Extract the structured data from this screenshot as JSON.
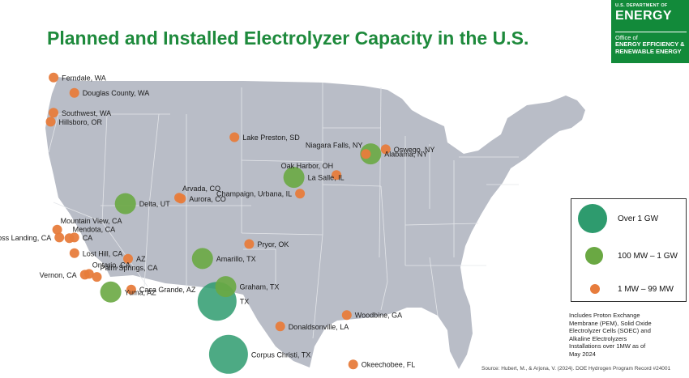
{
  "title": "Planned and Installed Electrolyzer Capacity in the U.S.",
  "brand": {
    "line1": "U.S. DEPARTMENT OF",
    "line2": "ENERGY",
    "line3": "Office of",
    "line4": "ENERGY EFFICIENCY &",
    "line5": "RENEWABLE ENERGY"
  },
  "legend": {
    "large": "Over 1 GW",
    "medium": "100 MW – 1 GW",
    "small": "1 MW – 99 MW"
  },
  "note": "Includes Proton Exchange Membrane (PEM), Solid Oxide Electrolyzer Cells (SOEC) and Alkaline Electrolyzers Installations over 1MW as of May 2024",
  "source": "Source: Hubert, M., & Arjona, V. (2024). DOE Hydrogen Program Record #24001",
  "colors": {
    "large": "#2e9b6e",
    "medium": "#6aa843",
    "small": "#e77c3c",
    "land": "#b9bdc7",
    "border": "#e4e6ea",
    "title": "#1e8a3c",
    "brand": "#128a3a"
  },
  "sites": [
    {
      "label": "Ferndale, WA",
      "category": "small",
      "lon": -122.59,
      "lat": 48.85
    },
    {
      "label": "Douglas County, WA",
      "category": "small",
      "lon": -119.7,
      "lat": 47.7
    },
    {
      "label": "Southwest, WA",
      "category": "small",
      "lon": -122.6,
      "lat": 46.2
    },
    {
      "label": "Hillsboro, OR",
      "category": "small",
      "lon": -122.99,
      "lat": 45.52
    },
    {
      "label": "Lake Preston, SD",
      "category": "small",
      "lon": -97.38,
      "lat": 44.36
    },
    {
      "label": "Niagara Falls, NY",
      "category": "small",
      "lon": -79.05,
      "lat": 43.09
    },
    {
      "label": "Oswego, NY",
      "category": "small",
      "lon": -76.3,
      "lat": 43.45
    },
    {
      "label": "Alabama, NY",
      "category": "medium",
      "lon": -78.39,
      "lat": 43.1
    },
    {
      "label": "Oak Harbor, OH",
      "category": "small",
      "lon": -83.15,
      "lat": 41.51
    },
    {
      "label": "La Salle, IL",
      "category": "medium",
      "lon": -89.09,
      "lat": 41.33
    },
    {
      "label": "Champaign, Urbana, IL",
      "category": "small",
      "lon": -88.24,
      "lat": 40.11
    },
    {
      "label": "Delta, UT",
      "category": "medium",
      "lon": -112.58,
      "lat": 39.35
    },
    {
      "label": "Arvada, CO",
      "category": "small",
      "lon": -105.09,
      "lat": 39.8
    },
    {
      "label": "Aurora, CO",
      "category": "small",
      "lon": -104.83,
      "lat": 39.73
    },
    {
      "label": "Mountain View, CA",
      "category": "small",
      "lon": -122.08,
      "lat": 37.39
    },
    {
      "label": "Mendota, CA",
      "category": "small",
      "lon": -120.38,
      "lat": 36.75
    },
    {
      "label": "CA",
      "category": "small",
      "lon": -119.7,
      "lat": 36.8
    },
    {
      "label": "Moss Landing, CA",
      "category": "small",
      "lon": -121.79,
      "lat": 36.8
    },
    {
      "label": "Lost Hill, CA",
      "category": "small",
      "lon": -119.69,
      "lat": 35.62
    },
    {
      "label": "AZ",
      "category": "small",
      "lon": -112.2,
      "lat": 35.2
    },
    {
      "label": "Ontario, CA",
      "category": "small",
      "lon": -117.65,
      "lat": 34.06
    },
    {
      "label": "Vernon, CA",
      "category": "small",
      "lon": -118.23,
      "lat": 34.0
    },
    {
      "label": "Palm Springs, CA",
      "category": "small",
      "lon": -116.55,
      "lat": 33.83
    },
    {
      "label": "Yuma, AZ",
      "category": "medium",
      "lon": -114.62,
      "lat": 32.69
    },
    {
      "label": "Casa Grande, AZ",
      "category": "small",
      "lon": -111.76,
      "lat": 32.88
    },
    {
      "label": "Pryor, OK",
      "category": "small",
      "lon": -95.32,
      "lat": 36.31
    },
    {
      "label": "Amarillo, TX",
      "category": "medium",
      "lon": -101.83,
      "lat": 35.22
    },
    {
      "label": "Graham, TX",
      "category": "medium",
      "lon": -98.59,
      "lat": 33.1
    },
    {
      "label": "TX",
      "category": "large",
      "lon": -99.8,
      "lat": 32.0
    },
    {
      "label": "Corpus Christi, TX",
      "category": "large",
      "lon": -98.2,
      "lat": 28.0
    },
    {
      "label": "Donaldsonville, LA",
      "category": "small",
      "lon": -90.99,
      "lat": 30.1
    },
    {
      "label": "Woodbine, GA",
      "category": "small",
      "lon": -81.72,
      "lat": 30.96
    },
    {
      "label": "Okeechobee, FL",
      "category": "small",
      "lon": -80.83,
      "lat": 27.24
    }
  ]
}
